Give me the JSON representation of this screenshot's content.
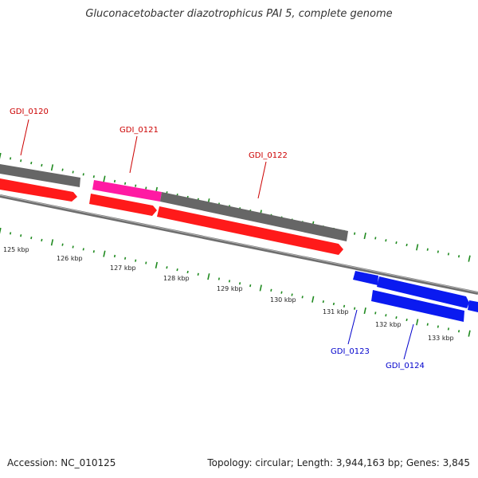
{
  "title": "Gluconacetobacter diazotrophicus PAI 5, complete genome",
  "footer": {
    "accession": "Accession: NC_010125",
    "summary": "Topology: circular; Length: 3,944,163 bp; Genes: 3,845"
  },
  "colors": {
    "tick": "#1f8a1f",
    "gene_gray": "#666666",
    "gene_red": "#ff1a1a",
    "gene_magenta": "#ff1aa3",
    "gene_blue": "#0a1af0",
    "backbone": "#7a7a7a",
    "label_red": "#cc0000",
    "label_blue": "#0000cc"
  },
  "kbp_labels": [
    "125 kbp",
    "126 kbp",
    "127 kbp",
    "128 kbp",
    "129 kbp",
    "130 kbp",
    "131 kbp",
    "132 kbp",
    "133 kbp"
  ],
  "genes": [
    {
      "name": "GDI_0120",
      "color": "label_red"
    },
    {
      "name": "GDI_0121",
      "color": "label_red"
    },
    {
      "name": "GDI_0122",
      "color": "label_red"
    },
    {
      "name": "GDI_0123",
      "color": "label_blue"
    },
    {
      "name": "GDI_0124",
      "color": "label_blue"
    }
  ]
}
